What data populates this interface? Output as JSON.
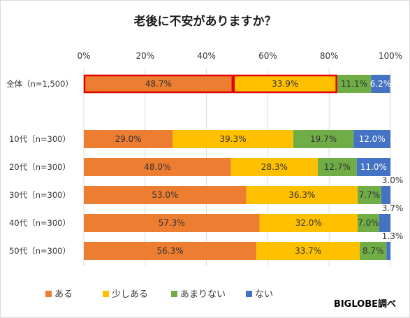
{
  "title": "老後に不安がありますか？",
  "source": "BIGLOBE調べ",
  "colors": {
    "ある": "#ed7d31",
    "少しある": "#ffc000",
    "あまりない": "#70ad47",
    "ない": "#4472c4",
    "highlight": "#e00000"
  },
  "chart_data": {
    "type": "bar",
    "orientation": "horizontal",
    "stacked": "percent",
    "title": "老後に不安がありますか？",
    "xlim": [
      0,
      100
    ],
    "x_ticks": [
      "0%",
      "20%",
      "40%",
      "60%",
      "80%",
      "100%"
    ],
    "grid": true,
    "legend_position": "bottom",
    "categories": [
      "全体（n=1,500）",
      "10代（n=300）",
      "20代（n=300）",
      "30代（n=300）",
      "40代（n=300）",
      "50代（n=300）"
    ],
    "series": [
      {
        "name": "ある",
        "values": [
          48.7,
          29.0,
          48.0,
          53.0,
          57.3,
          56.3
        ]
      },
      {
        "name": "少しある",
        "values": [
          33.9,
          39.3,
          28.3,
          36.3,
          32.0,
          33.7
        ]
      },
      {
        "name": "あまりない",
        "values": [
          11.1,
          19.7,
          12.7,
          7.7,
          7.0,
          8.7
        ]
      },
      {
        "name": "ない",
        "values": [
          6.2,
          12.0,
          11.0,
          3.0,
          3.7,
          1.3
        ]
      }
    ],
    "highlight": {
      "category": "全体（n=1,500）",
      "series": [
        "ある",
        "少しある"
      ]
    }
  }
}
